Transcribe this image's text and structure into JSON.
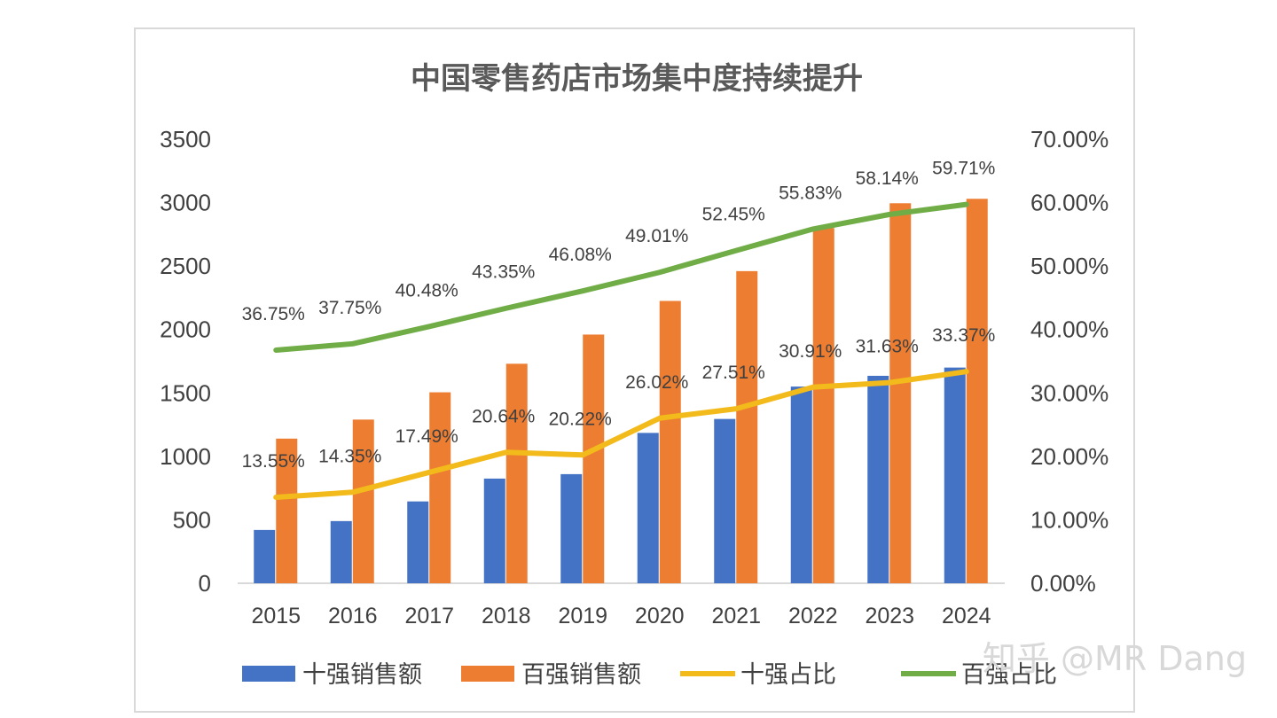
{
  "watermark": "知乎 @MR Dang",
  "chart_data": {
    "type": "bar",
    "title": "中国零售药店市场集中度持续提升",
    "categories": [
      "2015",
      "2016",
      "2017",
      "2018",
      "2019",
      "2020",
      "2021",
      "2022",
      "2023",
      "2024"
    ],
    "ylim": [
      0,
      3500
    ],
    "yticks": [
      "3500",
      "3000",
      "2500",
      "2000",
      "1500",
      "1000",
      "500",
      "0"
    ],
    "y2lim": [
      0,
      70
    ],
    "y2ticks": [
      "70.00%",
      "60.00%",
      "50.00%",
      "40.00%",
      "30.00%",
      "20.00%",
      "10.00%",
      "0.00%"
    ],
    "grid": false,
    "legend_position": "bottom",
    "series": [
      {
        "name": "十强销售额",
        "kind": "bar",
        "axis": "left",
        "color": "#4472C4",
        "values": [
          420,
          490,
          645,
          825,
          860,
          1185,
          1295,
          1550,
          1635,
          1700
        ]
      },
      {
        "name": "百强销售额",
        "kind": "bar",
        "axis": "left",
        "color": "#ED7D31",
        "values": [
          1140,
          1290,
          1505,
          1730,
          1960,
          2225,
          2460,
          2800,
          2995,
          3030
        ]
      },
      {
        "name": "十强占比",
        "kind": "line",
        "axis": "right",
        "color": "#F2BA1A",
        "values": [
          13.55,
          14.35,
          17.49,
          20.64,
          20.22,
          26.02,
          27.51,
          30.91,
          31.63,
          33.37
        ],
        "labels": [
          "13.55%",
          "14.35%",
          "17.49%",
          "20.64%",
          "20.22%",
          "26.02%",
          "27.51%",
          "30.91%",
          "31.63%",
          "33.37%"
        ]
      },
      {
        "name": "百强占比",
        "kind": "line",
        "axis": "right",
        "color": "#70AD47",
        "values": [
          36.75,
          37.75,
          40.48,
          43.35,
          46.08,
          49.01,
          52.45,
          55.83,
          58.14,
          59.71
        ],
        "labels": [
          "36.75%",
          "37.75%",
          "40.48%",
          "43.35%",
          "46.08%",
          "49.01%",
          "52.45%",
          "55.83%",
          "58.14%",
          "59.71%"
        ]
      }
    ]
  }
}
